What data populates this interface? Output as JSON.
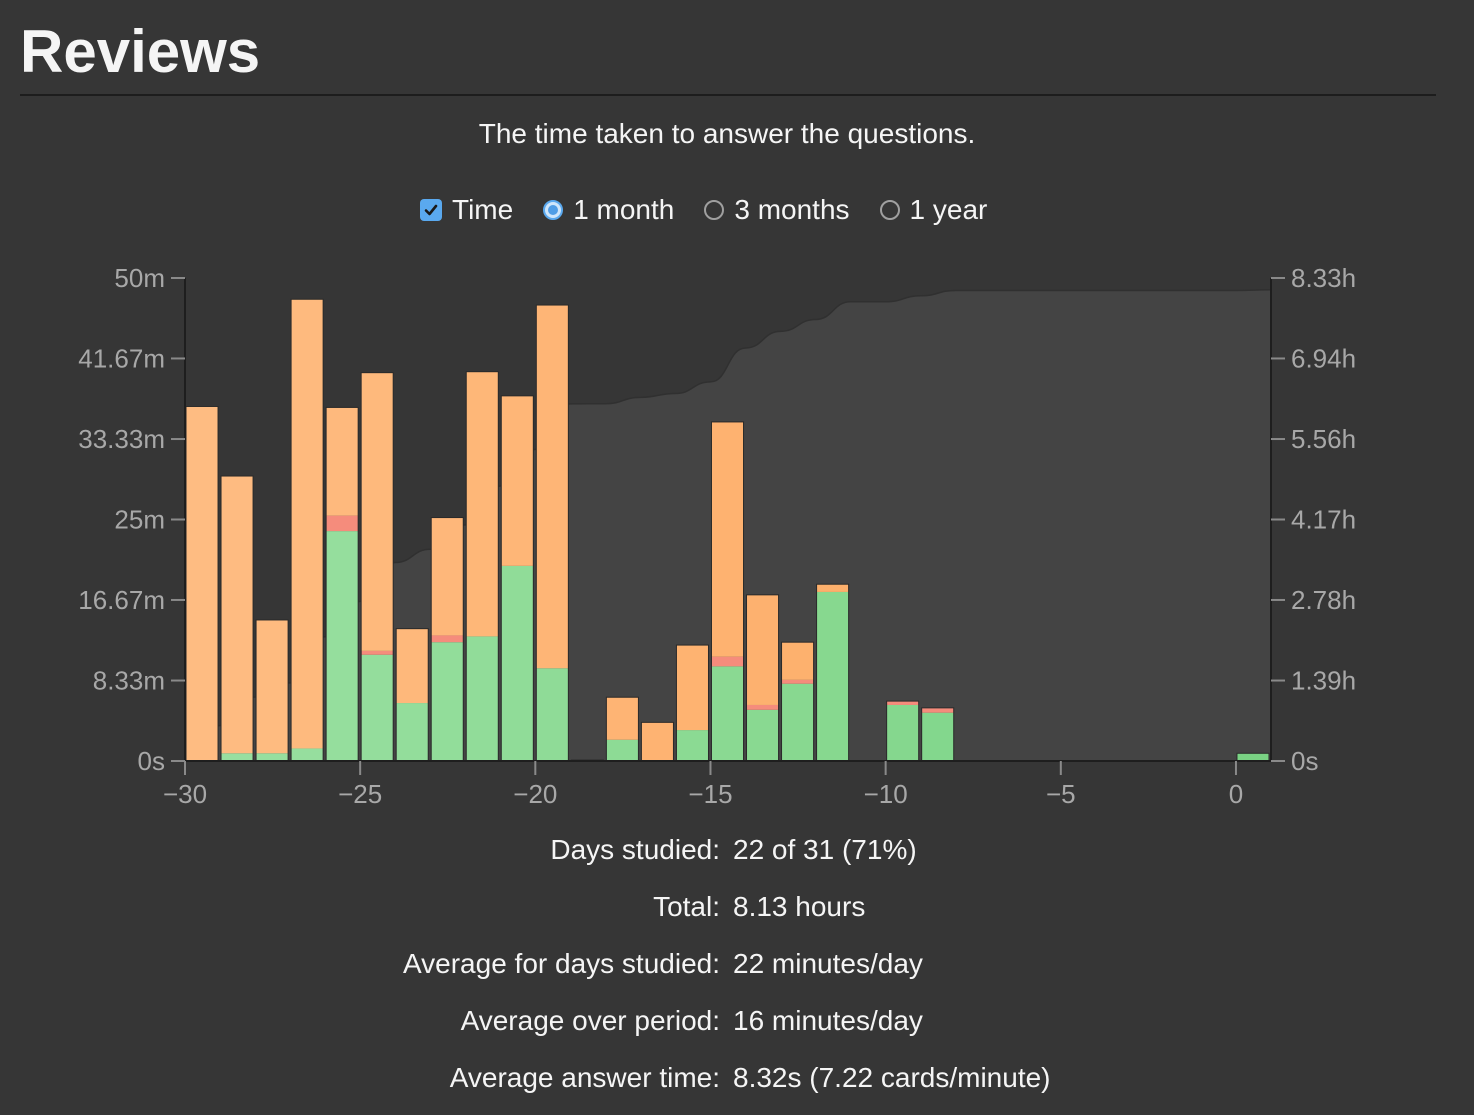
{
  "header": {
    "title": "Reviews",
    "subtitle": "The time taken to answer the questions."
  },
  "controls": {
    "time_label": "Time",
    "time_checked": true,
    "ranges": [
      {
        "label": "1 month",
        "selected": true
      },
      {
        "label": "3 months",
        "selected": false
      },
      {
        "label": "1 year",
        "selected": false
      }
    ]
  },
  "colors": {
    "background": "#363636",
    "learning_orange": "#fdb36b",
    "young_green": "#86d98e",
    "relearn_red": "#f58c7c",
    "cumulative_area": "#464646",
    "accent_blue": "#5aa9ef"
  },
  "chart_data": {
    "type": "bar",
    "stacked": true,
    "x_min": -30,
    "x_max": 1,
    "x_ticks": [
      -30,
      -25,
      -20,
      -15,
      -10,
      -5,
      0
    ],
    "x_tick_labels": [
      "−30",
      "−25",
      "−20",
      "−15",
      "−10",
      "−5",
      "0"
    ],
    "y_left_max": 50,
    "y_left_ticks": [
      0,
      8.33,
      16.67,
      25,
      33.33,
      41.67,
      50
    ],
    "y_left_tick_labels": [
      "0s",
      "8.33m",
      "16.67m",
      "25m",
      "33.33m",
      "41.67m",
      "50m"
    ],
    "y_right_max": 8.33,
    "y_right_tick_labels": [
      "0s",
      "1.39h",
      "2.78h",
      "4.17h",
      "5.56h",
      "6.94h",
      "8.33h"
    ],
    "grid": false,
    "days": [
      {
        "day": -30,
        "green": 0,
        "red": 0,
        "orange": 36.7
      },
      {
        "day": -29,
        "green": 0.8,
        "red": 0,
        "orange": 28.7
      },
      {
        "day": -28,
        "green": 0.8,
        "red": 0,
        "orange": 13.8
      },
      {
        "day": -27,
        "green": 1.3,
        "red": 0,
        "orange": 46.5
      },
      {
        "day": -26,
        "green": 23.8,
        "red": 1.6,
        "orange": 11.2
      },
      {
        "day": -25,
        "green": 11.0,
        "red": 0.4,
        "orange": 28.8
      },
      {
        "day": -24,
        "green": 6.0,
        "red": 0,
        "orange": 7.7
      },
      {
        "day": -23,
        "green": 12.3,
        "red": 0.7,
        "orange": 12.2
      },
      {
        "day": -22,
        "green": 12.9,
        "red": 0,
        "orange": 27.4
      },
      {
        "day": -21,
        "green": 20.2,
        "red": 0,
        "orange": 17.6
      },
      {
        "day": -20,
        "green": 9.6,
        "red": 0,
        "orange": 37.6
      },
      {
        "day": -19,
        "green": 0.1,
        "red": 0,
        "orange": 0
      },
      {
        "day": -18,
        "green": 2.2,
        "red": 0,
        "orange": 4.4
      },
      {
        "day": -17,
        "green": 0,
        "red": 0,
        "orange": 4.0
      },
      {
        "day": -16,
        "green": 3.2,
        "red": 0,
        "orange": 8.8
      },
      {
        "day": -15,
        "green": 9.8,
        "red": 1.0,
        "orange": 24.3
      },
      {
        "day": -14,
        "green": 5.3,
        "red": 0.5,
        "orange": 11.4
      },
      {
        "day": -13,
        "green": 8.0,
        "red": 0.4,
        "orange": 3.9
      },
      {
        "day": -12,
        "green": 17.5,
        "red": 0,
        "orange": 0.8
      },
      {
        "day": -11,
        "green": 0,
        "red": 0,
        "orange": 0
      },
      {
        "day": -10,
        "green": 5.8,
        "red": 0.4,
        "orange": 0
      },
      {
        "day": -9,
        "green": 5.0,
        "red": 0.5,
        "orange": 0
      },
      {
        "day": -8,
        "green": 0,
        "red": 0,
        "orange": 0
      },
      {
        "day": -7,
        "green": 0,
        "red": 0,
        "orange": 0
      },
      {
        "day": -6,
        "green": 0,
        "red": 0,
        "orange": 0
      },
      {
        "day": -5,
        "green": 0,
        "red": 0,
        "orange": 0
      },
      {
        "day": -4,
        "green": 0,
        "red": 0,
        "orange": 0
      },
      {
        "day": -3,
        "green": 0,
        "red": 0,
        "orange": 0
      },
      {
        "day": -2,
        "green": 0,
        "red": 0,
        "orange": 0
      },
      {
        "day": -1,
        "green": 0,
        "red": 0,
        "orange": 0
      },
      {
        "day": 0,
        "green": 0.8,
        "red": 0,
        "orange": 0
      }
    ]
  },
  "stats": [
    {
      "label": "Days studied:",
      "value": "22 of 31 (71%)"
    },
    {
      "label": "Total:",
      "value": "8.13 hours"
    },
    {
      "label": "Average for days studied:",
      "value": "22 minutes/day"
    },
    {
      "label": "Average over period:",
      "value": "16 minutes/day"
    },
    {
      "label": "Average answer time:",
      "value": "8.32s (7.22 cards/minute)"
    }
  ]
}
